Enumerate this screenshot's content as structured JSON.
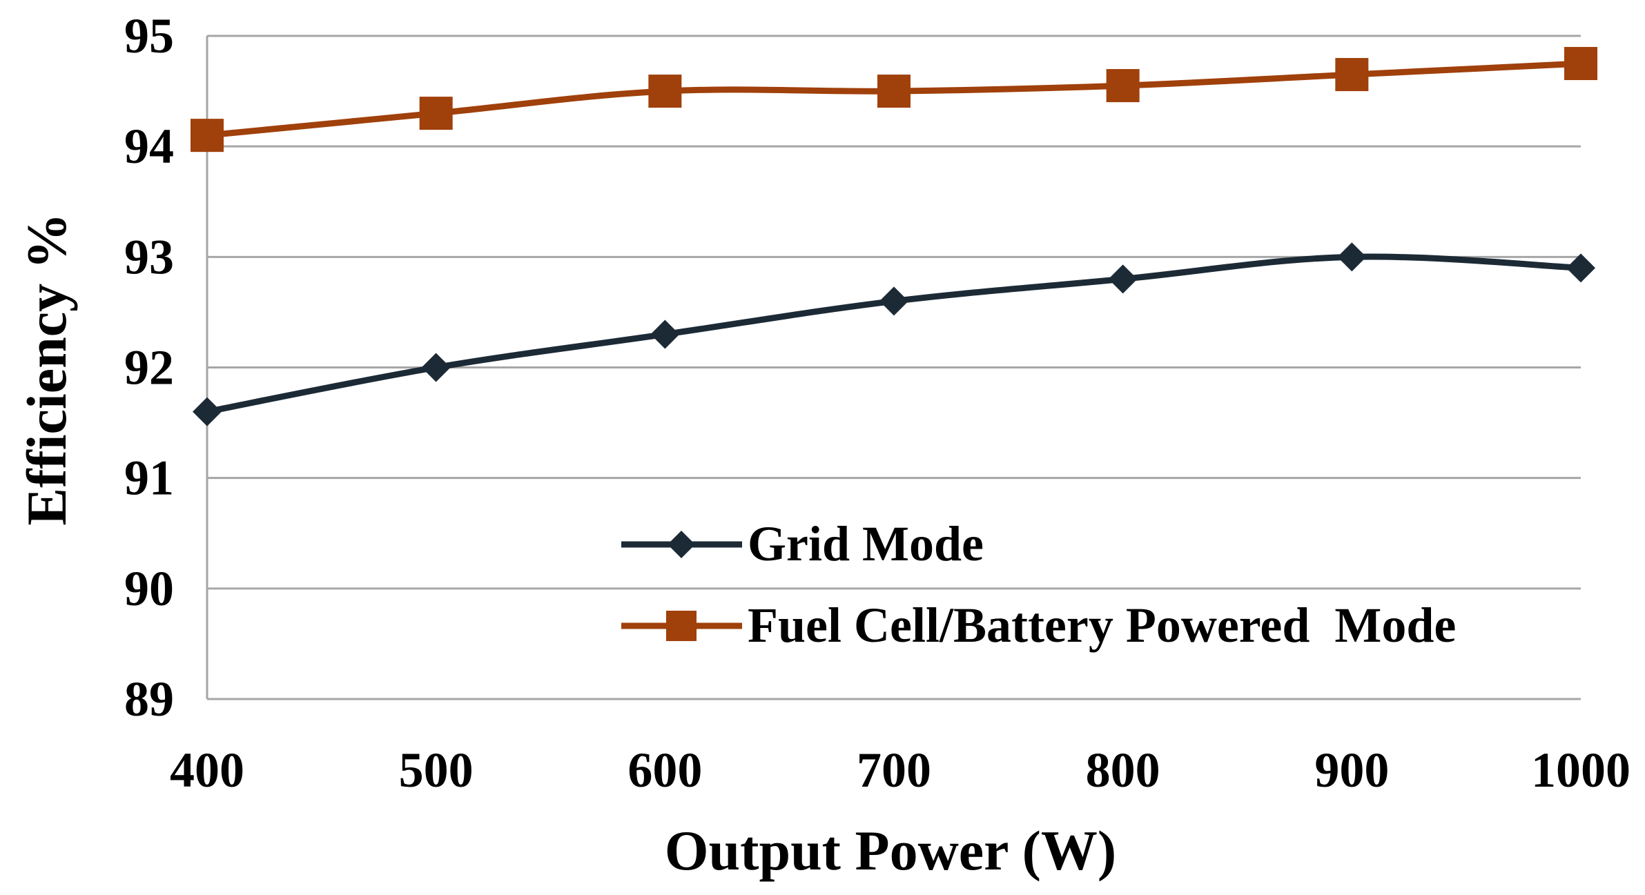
{
  "chart_data": {
    "type": "line",
    "title": "",
    "xlabel": "Output Power (W)",
    "ylabel": "Efficiency %",
    "x": [
      400,
      500,
      600,
      700,
      800,
      900,
      1000
    ],
    "x_tick_labels": [
      "400",
      "500",
      "600",
      "700",
      "800",
      "900",
      "1000"
    ],
    "y_tick_labels": [
      "89",
      "90",
      "91",
      "92",
      "93",
      "94",
      "95"
    ],
    "xlim": [
      400,
      1000
    ],
    "ylim": [
      89,
      95
    ],
    "grid": "horizontal",
    "legend_position": "bottom-right",
    "series": [
      {
        "name": "Grid Mode",
        "values": [
          91.6,
          92.0,
          92.3,
          92.6,
          92.8,
          93.0,
          92.9
        ],
        "color": "#1c2a36",
        "marker": "diamond"
      },
      {
        "name": "Fuel Cell/Battery Powered  Mode",
        "values": [
          94.1,
          94.3,
          94.5,
          94.5,
          94.55,
          94.65,
          94.75
        ],
        "color": "#a0400b",
        "marker": "square"
      }
    ]
  }
}
